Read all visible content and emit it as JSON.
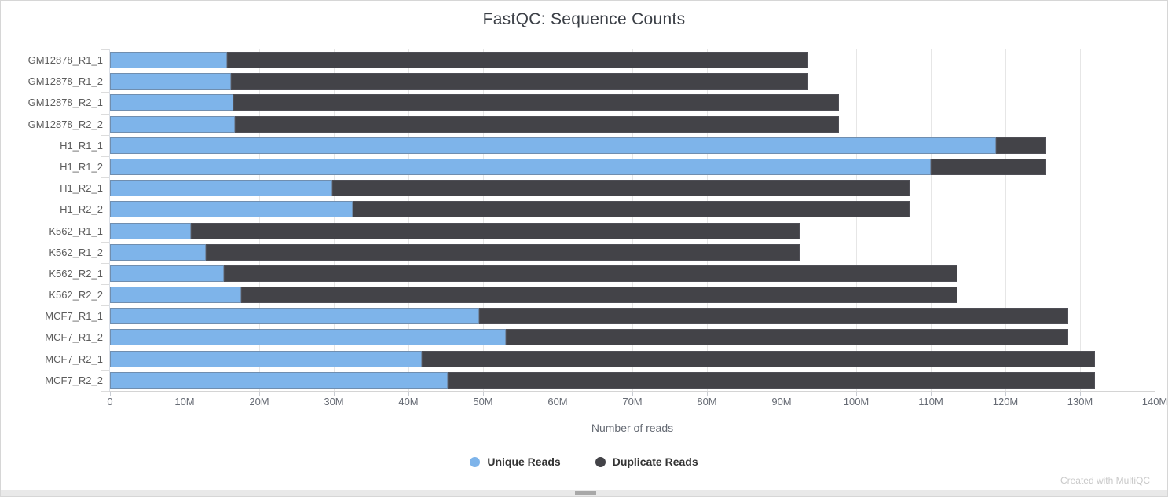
{
  "title": "FastQC: Sequence Counts",
  "footer": {
    "credit": "Created with MultiQC"
  },
  "colors": {
    "unique": "#7eb4ea",
    "duplicate": "#434348",
    "grid": "#e6e6e6",
    "axis_text": "#666b74",
    "category_text": "#5d5d5d"
  },
  "chart_data": {
    "type": "bar",
    "orientation": "horizontal",
    "stacked": true,
    "title": "FastQC: Sequence Counts",
    "xlabel": "Number of reads",
    "ylabel": "",
    "xlim_reads": [
      0,
      140000000
    ],
    "x_tick_labels": [
      "0",
      "10M",
      "20M",
      "30M",
      "40M",
      "50M",
      "60M",
      "70M",
      "80M",
      "90M",
      "100M",
      "110M",
      "120M",
      "130M",
      "140M"
    ],
    "grid": "vertical-only",
    "legend_position": "bottom",
    "categories": [
      "GM12878_R1_1",
      "GM12878_R1_2",
      "GM12878_R2_1",
      "GM12878_R2_2",
      "H1_R1_1",
      "H1_R1_2",
      "H1_R2_1",
      "H1_R2_2",
      "K562_R1_1",
      "K562_R1_2",
      "K562_R2_1",
      "K562_R2_2",
      "MCF7_R1_1",
      "MCF7_R1_2",
      "MCF7_R2_1",
      "MCF7_R2_2"
    ],
    "series": [
      {
        "name": "Unique Reads",
        "color": "#7eb4ea",
        "values_millions": [
          15.7,
          16.2,
          16.5,
          16.7,
          118.7,
          110.0,
          29.8,
          32.5,
          10.8,
          12.8,
          15.3,
          17.6,
          49.5,
          53.1,
          41.8,
          45.3
        ]
      },
      {
        "name": "Duplicate Reads",
        "color": "#434348",
        "values_millions": [
          77.9,
          77.4,
          81.2,
          81.0,
          6.8,
          15.5,
          77.4,
          74.7,
          81.6,
          79.6,
          98.3,
          96.0,
          78.9,
          75.3,
          90.2,
          86.7
        ]
      }
    ],
    "totals_millions": [
      93.6,
      93.6,
      97.7,
      97.7,
      125.5,
      125.5,
      107.2,
      107.2,
      92.4,
      92.4,
      113.6,
      113.6,
      128.4,
      128.4,
      132.0,
      132.0
    ]
  }
}
